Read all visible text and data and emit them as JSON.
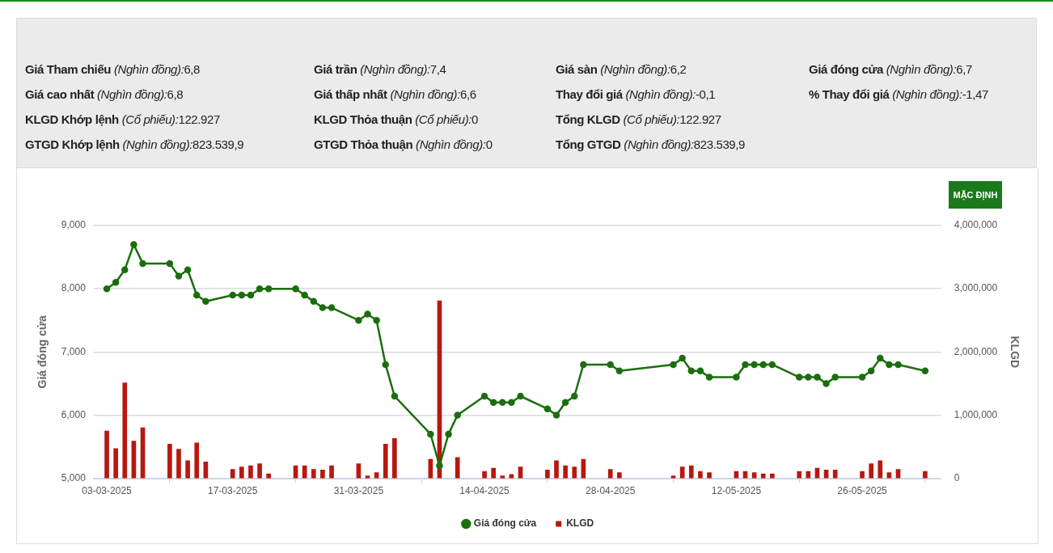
{
  "chart_data": {
    "type": "line",
    "annotations": [
      "Giá Tham chiếu (Nghìn đồng):6,8",
      "Giá cao nhất (Nghìn đồng):6,8",
      "KLGD Khớp lệnh (Cổ phiếu):122.927",
      "GTGD Khớp lệnh (Nghìn đồng):823.539,9",
      "Giá trần (Nghìn đồng):7,4",
      "Giá thấp nhất (Nghìn đồng):6,6",
      "KLGD Thỏa thuận (Cổ phiếu):0",
      "GTGD Thỏa thuận (Nghìn đồng):0",
      "Giá sàn (Nghìn đồng):6,2",
      "Thay đổi giá (Nghìn đồng):-0,1",
      "Tổng KLGD (Cổ phiếu):122.927",
      "Tổng GTGD (Nghìn đồng):823.539,9",
      "Giá đóng cửa (Nghìn đồng):6,7",
      "% Thay đổi giá (Nghìn đồng):-1,47",
      "MẶC ĐỊNH"
    ],
    "ylabel": "Giá đóng cửa",
    "y2label": "KLGD",
    "x": [
      "2025-03-03",
      "2025-03-04",
      "2025-03-05",
      "2025-03-06",
      "2025-03-07",
      "2025-03-10",
      "2025-03-11",
      "2025-03-12",
      "2025-03-13",
      "2025-03-14",
      "2025-03-17",
      "2025-03-18",
      "2025-03-19",
      "2025-03-20",
      "2025-03-21",
      "2025-03-24",
      "2025-03-25",
      "2025-03-26",
      "2025-03-27",
      "2025-03-28",
      "2025-03-31",
      "2025-04-01",
      "2025-04-02",
      "2025-04-03",
      "2025-04-04",
      "2025-04-08",
      "2025-04-09",
      "2025-04-10",
      "2025-04-11",
      "2025-04-14",
      "2025-04-15",
      "2025-04-16",
      "2025-04-17",
      "2025-04-18",
      "2025-04-21",
      "2025-04-22",
      "2025-04-23",
      "2025-04-24",
      "2025-04-25",
      "2025-04-28",
      "2025-04-29",
      "2025-05-05",
      "2025-05-06",
      "2025-05-07",
      "2025-05-08",
      "2025-05-09",
      "2025-05-12",
      "2025-05-13",
      "2025-05-14",
      "2025-05-15",
      "2025-05-16",
      "2025-05-19",
      "2025-05-20",
      "2025-05-21",
      "2025-05-22",
      "2025-05-23",
      "2025-05-26",
      "2025-05-27",
      "2025-05-28",
      "2025-05-29",
      "2025-05-30",
      "2025-06-02"
    ],
    "series": [
      {
        "name": "Giá đóng cửa",
        "color": "#1b6e0d",
        "values": [
          8000,
          8100,
          8300,
          8700,
          8400,
          8400,
          8200,
          8300,
          7900,
          7800,
          7900,
          7900,
          7900,
          8000,
          8000,
          8000,
          7900,
          7800,
          7700,
          7700,
          7500,
          7600,
          7500,
          6800,
          6300,
          5700,
          5200,
          5700,
          6000,
          6300,
          6200,
          6200,
          6200,
          6300,
          6100,
          6000,
          6200,
          6300,
          6800,
          6800,
          6700,
          6800,
          6900,
          6700,
          6700,
          6600,
          6600,
          6800,
          6800,
          6800,
          6800,
          6600,
          6600,
          6600,
          6500,
          6600,
          6600,
          6700,
          6900,
          6800,
          6800,
          6700
        ]
      },
      {
        "name": "KLGD",
        "type": "bar",
        "axis": "y2",
        "color": "#b8170f",
        "values": [
          750000,
          470000,
          1510000,
          590000,
          800000,
          540000,
          460000,
          280000,
          560000,
          260000,
          140000,
          180000,
          200000,
          230000,
          70000,
          200000,
          200000,
          140000,
          130000,
          200000,
          230000,
          40000,
          90000,
          540000,
          630000,
          300000,
          2810000,
          null,
          330000,
          110000,
          160000,
          40000,
          60000,
          180000,
          130000,
          280000,
          200000,
          180000,
          300000,
          140000,
          90000,
          40000,
          180000,
          200000,
          110000,
          90000,
          110000,
          110000,
          90000,
          70000,
          70000,
          110000,
          110000,
          160000,
          130000,
          130000,
          110000,
          230000,
          280000,
          90000,
          140000,
          110000
        ]
      }
    ],
    "xlim": [
      "2025-03-01T13:00",
      "2025-06-03T19:00"
    ],
    "xticks": [
      {
        "value": "2025-03-03",
        "label": "03-03-2025"
      },
      {
        "value": "2025-03-17",
        "label": "17-03-2025"
      },
      {
        "value": "2025-03-31",
        "label": "31-03-2025"
      },
      {
        "value": "2025-04-14",
        "label": "14-04-2025"
      },
      {
        "value": "2025-04-28",
        "label": "28-04-2025"
      },
      {
        "value": "2025-05-12",
        "label": "12-05-2025"
      },
      {
        "value": "2025-05-26",
        "label": "26-05-2025"
      }
    ],
    "ylim": [
      5000,
      9000
    ],
    "yticks": [
      {
        "value": 5000,
        "label": "5,000"
      },
      {
        "value": 6000,
        "label": "6,000"
      },
      {
        "value": 7000,
        "label": "7,000"
      },
      {
        "value": 8000,
        "label": "8,000"
      },
      {
        "value": 9000,
        "label": "9,000"
      }
    ],
    "y2lim": [
      0,
      4000000
    ],
    "y2ticks": [
      {
        "value": 0,
        "label": "0"
      },
      {
        "value": 1000000,
        "label": "1,000,000"
      },
      {
        "value": 2000000,
        "label": "2,000,000"
      },
      {
        "value": 3000000,
        "label": "3,000,000"
      },
      {
        "value": 4000000,
        "label": "4,000,000"
      }
    ],
    "grid": "y",
    "legend": "bottom",
    "marker": "circle"
  }
}
